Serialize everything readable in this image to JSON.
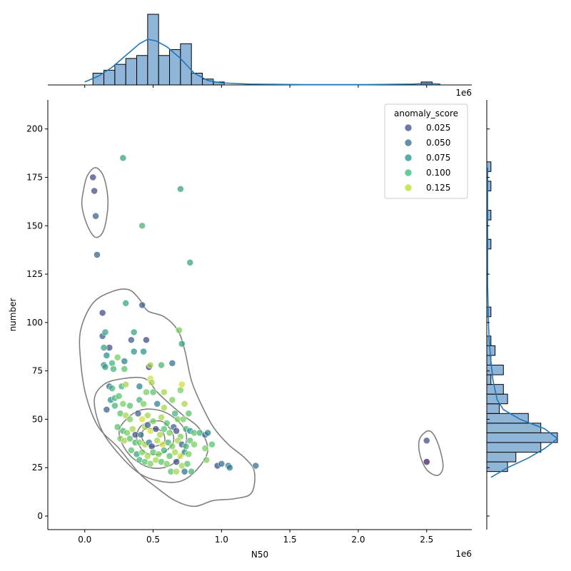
{
  "chart_data": {
    "type": "scatter",
    "subtype": "jointplot",
    "xlabel": "N50",
    "ylabel": "number",
    "x_multiplier_label": "1e6",
    "xlim": [
      -0.27,
      2.83
    ],
    "ylim": [
      -7,
      215
    ],
    "x_ticks": [
      0.0,
      0.5,
      1.0,
      1.5,
      2.0,
      2.5
    ],
    "x_tick_labels": [
      "0.0",
      "0.5",
      "1.0",
      "1.5",
      "2.0",
      "2.5"
    ],
    "y_ticks": [
      0,
      25,
      50,
      75,
      100,
      125,
      150,
      175,
      200
    ],
    "y_tick_labels": [
      "0",
      "25",
      "50",
      "75",
      "100",
      "125",
      "150",
      "175",
      "200"
    ],
    "grid": false,
    "colormap": "viridis",
    "legend": {
      "title": "anomaly_score",
      "placement": "top-right",
      "entries": [
        {
          "label": "0.025",
          "color": "#3e4a89"
        },
        {
          "label": "0.050",
          "color": "#31688e"
        },
        {
          "label": "0.075",
          "color": "#21918c"
        },
        {
          "label": "0.100",
          "color": "#35b779"
        },
        {
          "label": "0.125",
          "color": "#b5de2b"
        }
      ]
    },
    "points": [
      [
        0.06,
        175,
        0.03
      ],
      [
        0.07,
        168,
        0.03
      ],
      [
        0.08,
        155,
        0.04
      ],
      [
        0.09,
        135,
        0.04
      ],
      [
        0.28,
        185,
        0.08
      ],
      [
        0.7,
        169,
        0.08
      ],
      [
        0.42,
        150,
        0.09
      ],
      [
        0.77,
        131,
        0.08
      ],
      [
        0.13,
        105,
        0.03
      ],
      [
        0.3,
        110,
        0.08
      ],
      [
        0.42,
        109,
        0.04
      ],
      [
        0.13,
        93,
        0.04
      ],
      [
        0.15,
        95,
        0.08
      ],
      [
        0.36,
        95,
        0.08
      ],
      [
        0.34,
        91,
        0.04
      ],
      [
        0.45,
        91,
        0.03
      ],
      [
        0.69,
        96,
        0.11
      ],
      [
        0.18,
        87,
        0.03
      ],
      [
        0.14,
        87,
        0.08
      ],
      [
        0.16,
        83,
        0.07
      ],
      [
        0.36,
        85,
        0.07
      ],
      [
        0.43,
        85,
        0.07
      ],
      [
        0.71,
        89,
        0.08
      ],
      [
        0.29,
        80,
        0.06
      ],
      [
        0.14,
        78,
        0.06
      ],
      [
        0.15,
        77,
        0.08
      ],
      [
        0.2,
        79,
        0.09
      ],
      [
        0.21,
        76,
        0.09
      ],
      [
        0.29,
        76,
        0.1
      ],
      [
        0.24,
        82,
        0.11
      ],
      [
        0.47,
        77,
        0.02
      ],
      [
        0.48,
        78,
        0.12
      ],
      [
        0.56,
        78,
        0.09
      ],
      [
        0.64,
        79,
        0.05
      ],
      [
        0.48,
        71,
        0.13
      ],
      [
        0.49,
        69,
        0.12
      ],
      [
        0.18,
        67,
        0.05
      ],
      [
        0.2,
        66,
        0.09
      ],
      [
        0.27,
        67,
        0.09
      ],
      [
        0.3,
        68,
        0.12
      ],
      [
        0.4,
        67,
        0.06
      ],
      [
        0.45,
        64,
        0.11
      ],
      [
        0.5,
        64,
        0.1
      ],
      [
        0.58,
        64,
        0.12
      ],
      [
        0.71,
        68,
        0.13
      ],
      [
        0.7,
        65,
        0.11
      ],
      [
        0.19,
        60,
        0.07
      ],
      [
        0.22,
        61,
        0.09
      ],
      [
        0.25,
        62,
        0.1
      ],
      [
        0.16,
        55,
        0.04
      ],
      [
        0.22,
        57,
        0.09
      ],
      [
        0.28,
        58,
        0.11
      ],
      [
        0.33,
        57,
        0.1
      ],
      [
        0.4,
        60,
        0.09
      ],
      [
        0.43,
        58,
        0.11
      ],
      [
        0.53,
        58,
        0.06
      ],
      [
        0.64,
        60,
        0.11
      ],
      [
        0.58,
        56,
        0.12
      ],
      [
        0.73,
        58,
        0.12
      ],
      [
        0.26,
        53,
        0.1
      ],
      [
        0.3,
        52,
        0.12
      ],
      [
        0.33,
        50,
        0.11
      ],
      [
        0.39,
        53,
        0.04
      ],
      [
        0.42,
        50,
        0.13
      ],
      [
        0.46,
        52,
        0.12
      ],
      [
        0.5,
        49,
        0.11
      ],
      [
        0.56,
        51,
        0.12
      ],
      [
        0.6,
        48,
        0.1
      ],
      [
        0.66,
        53,
        0.09
      ],
      [
        0.68,
        50,
        0.11
      ],
      [
        0.72,
        50,
        0.11
      ],
      [
        0.76,
        53,
        0.1
      ],
      [
        0.24,
        46,
        0.1
      ],
      [
        0.28,
        44,
        0.09
      ],
      [
        0.31,
        43,
        0.11
      ],
      [
        0.35,
        45,
        0.12
      ],
      [
        0.37,
        42,
        0.03
      ],
      [
        0.41,
        42,
        0.05
      ],
      [
        0.44,
        46,
        0.12
      ],
      [
        0.46,
        47,
        0.04
      ],
      [
        0.48,
        44,
        0.13
      ],
      [
        0.52,
        45,
        0.03
      ],
      [
        0.55,
        42,
        0.12
      ],
      [
        0.58,
        45,
        0.1
      ],
      [
        0.62,
        43,
        0.11
      ],
      [
        0.65,
        46,
        0.04
      ],
      [
        0.67,
        44,
        0.03
      ],
      [
        0.7,
        41,
        0.11
      ],
      [
        0.74,
        45,
        0.09
      ],
      [
        0.77,
        44,
        0.07
      ],
      [
        0.8,
        43,
        0.1
      ],
      [
        0.84,
        43,
        0.09
      ],
      [
        0.88,
        42,
        0.05
      ],
      [
        0.9,
        43,
        0.06
      ],
      [
        0.26,
        40,
        0.11
      ],
      [
        0.29,
        39,
        0.12
      ],
      [
        0.33,
        40,
        0.1
      ],
      [
        0.37,
        38,
        0.09
      ],
      [
        0.4,
        38,
        0.11
      ],
      [
        0.44,
        37,
        0.12
      ],
      [
        0.47,
        38,
        0.06
      ],
      [
        0.49,
        36,
        0.03
      ],
      [
        0.53,
        39,
        0.12
      ],
      [
        0.57,
        37,
        0.13
      ],
      [
        0.61,
        38,
        0.09
      ],
      [
        0.64,
        36,
        0.11
      ],
      [
        0.68,
        39,
        0.12
      ],
      [
        0.71,
        37,
        0.04
      ],
      [
        0.74,
        36,
        0.09
      ],
      [
        0.77,
        39,
        0.1
      ],
      [
        0.8,
        37,
        0.11
      ],
      [
        0.88,
        35,
        0.11
      ],
      [
        0.93,
        37,
        0.1
      ],
      [
        0.34,
        34,
        0.1
      ],
      [
        0.38,
        32,
        0.08
      ],
      [
        0.42,
        33,
        0.11
      ],
      [
        0.46,
        31,
        0.12
      ],
      [
        0.5,
        33,
        0.1
      ],
      [
        0.54,
        32,
        0.11
      ],
      [
        0.58,
        34,
        0.09
      ],
      [
        0.62,
        31,
        0.1
      ],
      [
        0.66,
        33,
        0.12
      ],
      [
        0.7,
        31,
        0.13
      ],
      [
        0.73,
        33,
        0.08
      ],
      [
        0.76,
        32,
        0.11
      ],
      [
        0.4,
        29,
        0.09
      ],
      [
        0.44,
        28,
        0.1
      ],
      [
        0.48,
        27,
        0.11
      ],
      [
        0.52,
        29,
        0.12
      ],
      [
        0.56,
        28,
        0.1
      ],
      [
        0.6,
        27,
        0.11
      ],
      [
        0.67,
        28,
        0.03
      ],
      [
        0.71,
        26,
        0.12
      ],
      [
        0.75,
        27,
        0.1
      ],
      [
        0.89,
        29,
        0.11
      ],
      [
        0.63,
        23,
        0.1
      ],
      [
        0.67,
        23,
        0.12
      ],
      [
        0.73,
        23,
        0.05
      ],
      [
        0.78,
        23,
        0.09
      ],
      [
        0.97,
        26,
        0.03
      ],
      [
        1.0,
        27,
        0.05
      ],
      [
        1.05,
        26,
        0.05
      ],
      [
        1.06,
        25,
        0.06
      ],
      [
        1.25,
        26,
        0.05
      ],
      [
        2.5,
        39,
        0.03
      ],
      [
        2.5,
        28,
        0.01
      ]
    ],
    "kde_contours": [
      [
        [
          -0.02,
          160
        ],
        [
          0.02,
          150
        ],
        [
          0.08,
          144
        ],
        [
          0.14,
          148
        ],
        [
          0.17,
          162
        ],
        [
          0.14,
          175
        ],
        [
          0.08,
          180
        ],
        [
          0.02,
          176
        ],
        [
          -0.01,
          168
        ]
      ],
      [
        [
          2.45,
          40
        ],
        [
          2.52,
          44
        ],
        [
          2.58,
          38
        ],
        [
          2.62,
          26
        ],
        [
          2.58,
          21
        ],
        [
          2.5,
          24
        ],
        [
          2.45,
          32
        ]
      ],
      [
        [
          -0.03,
          96
        ],
        [
          0.06,
          110
        ],
        [
          0.2,
          116
        ],
        [
          0.32,
          117
        ],
        [
          0.4,
          112
        ],
        [
          0.46,
          106
        ],
        [
          0.58,
          103
        ],
        [
          0.68,
          96
        ],
        [
          0.73,
          86
        ],
        [
          0.78,
          70
        ],
        [
          0.85,
          58
        ],
        [
          0.94,
          46
        ],
        [
          1.05,
          37
        ],
        [
          1.17,
          30
        ],
        [
          1.24,
          23
        ],
        [
          1.22,
          12
        ],
        [
          1.1,
          9
        ],
        [
          0.94,
          8
        ],
        [
          0.8,
          5
        ],
        [
          0.66,
          8
        ],
        [
          0.52,
          15
        ],
        [
          0.4,
          22
        ],
        [
          0.25,
          35
        ],
        [
          0.1,
          46
        ],
        [
          0.01,
          62
        ],
        [
          -0.03,
          80
        ]
      ],
      [
        [
          0.07,
          60
        ],
        [
          0.14,
          68
        ],
        [
          0.28,
          71
        ],
        [
          0.44,
          71
        ],
        [
          0.53,
          64
        ],
        [
          0.62,
          58
        ],
        [
          0.72,
          52
        ],
        [
          0.84,
          45
        ],
        [
          0.9,
          34
        ],
        [
          0.82,
          24
        ],
        [
          0.7,
          18
        ],
        [
          0.55,
          18
        ],
        [
          0.4,
          22
        ],
        [
          0.25,
          32
        ],
        [
          0.12,
          45
        ]
      ],
      [
        [
          0.26,
          46
        ],
        [
          0.38,
          54
        ],
        [
          0.52,
          55
        ],
        [
          0.65,
          51
        ],
        [
          0.74,
          43
        ],
        [
          0.72,
          33
        ],
        [
          0.62,
          26
        ],
        [
          0.48,
          25
        ],
        [
          0.35,
          30
        ],
        [
          0.27,
          38
        ]
      ],
      [
        [
          0.42,
          47
        ],
        [
          0.56,
          49
        ],
        [
          0.64,
          43
        ],
        [
          0.64,
          37
        ],
        [
          0.55,
          32
        ],
        [
          0.44,
          33
        ],
        [
          0.38,
          40
        ]
      ],
      [
        [
          0.44,
          45
        ],
        [
          0.56,
          44
        ],
        [
          0.58,
          38
        ],
        [
          0.48,
          36
        ],
        [
          0.42,
          40
        ]
      ]
    ],
    "x_histogram": {
      "bin_edges": [
        0.06,
        0.14,
        0.22,
        0.3,
        0.38,
        0.46,
        0.54,
        0.62,
        0.7,
        0.78,
        0.86,
        0.94,
        1.02,
        1.1,
        1.18,
        1.26,
        1.34,
        1.42,
        1.5,
        1.58,
        1.66,
        1.74,
        1.82,
        1.9,
        1.98,
        2.06,
        2.14,
        2.22,
        2.3,
        2.38,
        2.46,
        2.54
      ],
      "counts": [
        4,
        5,
        7,
        9,
        10,
        24,
        10,
        12,
        14,
        4,
        2,
        1,
        0,
        0,
        0,
        0,
        0,
        0,
        0,
        0,
        0,
        0,
        0,
        0,
        0,
        0,
        0,
        0,
        0,
        0,
        1
      ]
    },
    "x_kde": [
      [
        0.0,
        1
      ],
      [
        0.1,
        3
      ],
      [
        0.2,
        6
      ],
      [
        0.3,
        10
      ],
      [
        0.4,
        14
      ],
      [
        0.46,
        15.5
      ],
      [
        0.52,
        15
      ],
      [
        0.6,
        13
      ],
      [
        0.7,
        9
      ],
      [
        0.8,
        4
      ],
      [
        0.9,
        1.5
      ],
      [
        1.0,
        0.7
      ],
      [
        1.2,
        0.3
      ],
      [
        1.6,
        0.1
      ],
      [
        2.0,
        0.1
      ],
      [
        2.4,
        0.3
      ],
      [
        2.5,
        0.5
      ],
      [
        2.6,
        0.3
      ]
    ],
    "y_histogram": {
      "bin_edges": [
        23,
        28,
        33,
        38,
        43,
        48,
        53,
        58,
        63,
        68,
        73,
        78,
        83,
        88,
        93,
        98,
        103,
        108,
        113,
        118,
        123,
        128,
        133,
        138,
        143,
        148,
        153,
        158,
        163,
        168,
        173,
        178,
        183,
        188
      ],
      "counts": [
        5,
        7,
        13,
        17,
        13,
        10,
        3,
        5,
        4,
        1,
        4,
        1,
        2,
        1,
        0,
        0,
        1,
        0,
        0,
        0,
        0,
        0,
        0,
        1,
        0,
        0,
        1,
        0,
        0,
        1,
        0,
        1,
        0
      ]
    },
    "y_kde": [
      [
        20,
        1
      ],
      [
        25,
        5
      ],
      [
        30,
        10
      ],
      [
        35,
        14
      ],
      [
        40,
        17
      ],
      [
        45,
        14
      ],
      [
        50,
        8
      ],
      [
        55,
        4
      ],
      [
        60,
        2.5
      ],
      [
        70,
        1.5
      ],
      [
        80,
        1
      ],
      [
        90,
        0.6
      ],
      [
        100,
        0.4
      ],
      [
        120,
        0.2
      ],
      [
        150,
        0.2
      ],
      [
        180,
        0.2
      ]
    ]
  }
}
